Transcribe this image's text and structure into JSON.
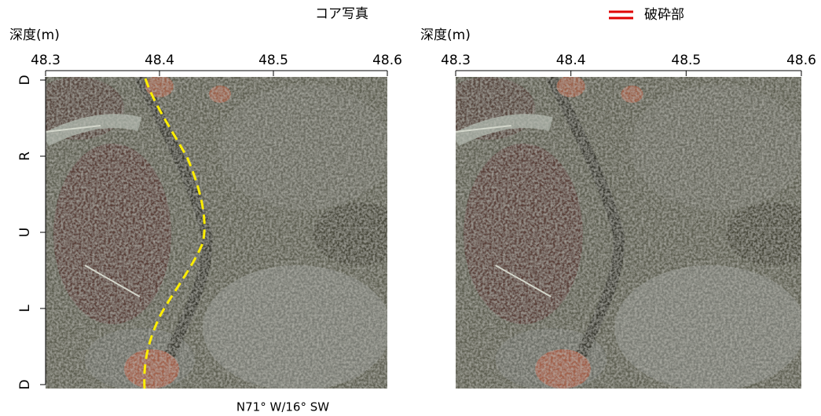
{
  "title": "コア写真",
  "legend": {
    "label": "破砕部",
    "color": "#e00000"
  },
  "panels": [
    {
      "axis_label": "深度(m)",
      "xlim": [
        48.3,
        48.6
      ],
      "xticks": [
        48.3,
        48.4,
        48.5,
        48.6
      ],
      "orientation_labels": [
        "D",
        "R",
        "U",
        "L",
        "D"
      ]
    },
    {
      "axis_label": "深度(m)",
      "xlim": [
        48.3,
        48.6
      ],
      "xticks": [
        48.3,
        48.4,
        48.5,
        48.6
      ]
    }
  ],
  "annotation": "N71° W/16° SW"
}
